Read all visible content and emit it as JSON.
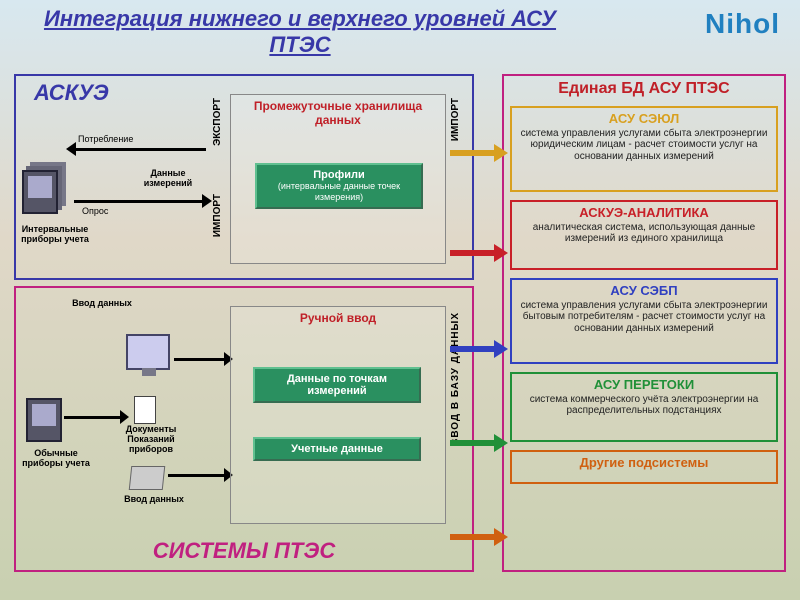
{
  "title": "Интеграция нижнего и верхнего уровней АСУ ПТЭС",
  "logo": "Nihol",
  "colors": {
    "title": "#3838a8",
    "logo": "#2080c0",
    "askue_border": "#3838a8",
    "ptes_border": "#c02080",
    "right_border": "#c02080",
    "green": "#2a9060",
    "frame_gray": "#888888"
  },
  "left_top": {
    "title": "АСКУЭ",
    "consumption": "Потребление",
    "poll": "Опрос",
    "data_meas": "Данные измерений",
    "interval_dev": "Интервальные приборы учета",
    "export_v": "ЭКСПОРТ",
    "import_v": "ИМПОРТ",
    "import_v2": "ИМПОРТ",
    "storage_title": "Промежуточные хранилища данных",
    "profiles_title": "Профили",
    "profiles_sub": "(интервальные данные точек измерения)"
  },
  "left_bottom": {
    "title": "СИСТЕМЫ ПТЭС",
    "input1": "Ввод данных",
    "input2": "Ввод данных",
    "docs": "Документы Показаний приборов",
    "usual_dev": "Обычные приборы учета",
    "manual": "Ручной ввод",
    "points": "Данные по точкам измерений",
    "account": "Учетные данные",
    "db_entry_v": "ВВОД  В  БАЗУ  ДАННЫХ"
  },
  "right": {
    "title": "Единая БД АСУ ПТЭС",
    "cards": [
      {
        "name": "asu-seyul",
        "title": "АСУ СЭЮЛ",
        "desc": "система управления услугами сбыта электроэнергии юридическим лицам - расчет стоимости услуг на основании данных измерений",
        "border": "#d8a020"
      },
      {
        "name": "askue-analytics",
        "title": "АСКУЭ-АНАЛИТИКА",
        "desc": "аналитическая система, использующая данные измерений из единого хранилища",
        "border": "#c82028"
      },
      {
        "name": "asu-sebp",
        "title": "АСУ СЭБП",
        "desc": "система управления услугами сбыта электроэнергии бытовым потребителям - расчет стоимости услуг на основании данных измерений",
        "border": "#3040c0"
      },
      {
        "name": "asu-peretoki",
        "title": "АСУ ПЕРЕТОКИ",
        "desc": "система коммерческого учёта электроэнергии на распределительных подстанциях",
        "border": "#209038"
      },
      {
        "name": "other-subsystems",
        "title": "Другие подсистемы",
        "desc": "",
        "border": "#d06010"
      }
    ],
    "arrow_colors": [
      "#d8a020",
      "#c82028",
      "#3040c0",
      "#209038",
      "#d06010"
    ]
  }
}
